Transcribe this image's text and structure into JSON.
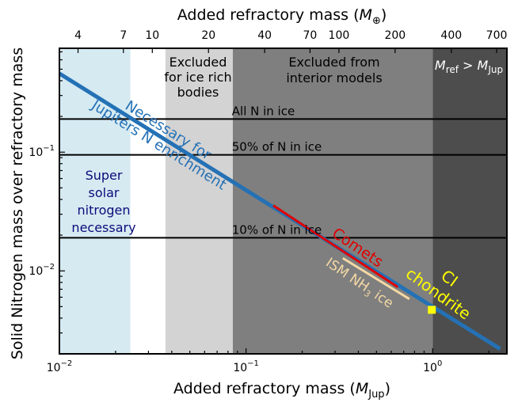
{
  "chart_data": {
    "type": "line",
    "xlabel": "Added refractory mass (M_Jup)",
    "ylabel": "Solid Nitrogen mass over refractory mass",
    "top_xlabel": "Added refractory mass (M_⊕)",
    "xscale": "log",
    "yscale": "log",
    "xlim": [
      0.01,
      2.5
    ],
    "ylim": [
      0.002,
      0.75
    ],
    "x_ticks": [
      {
        "value": 0.01,
        "base": "10",
        "exp": "−2"
      },
      {
        "value": 0.1,
        "base": "10",
        "exp": "−1"
      },
      {
        "value": 1,
        "base": "10",
        "exp": "0"
      }
    ],
    "y_ticks": [
      {
        "value": 0.01,
        "base": "10",
        "exp": "−2"
      },
      {
        "value": 0.1,
        "base": "10",
        "exp": "−1"
      }
    ],
    "top_ticks": [
      {
        "value": 4,
        "label": "4"
      },
      {
        "value": 7,
        "label": "7"
      },
      {
        "value": 10,
        "label": "10"
      },
      {
        "value": 20,
        "label": "20"
      },
      {
        "value": 40,
        "label": "40"
      },
      {
        "value": 70,
        "label": "70"
      },
      {
        "value": 100,
        "label": "100"
      },
      {
        "value": 200,
        "label": "200"
      },
      {
        "value": 400,
        "label": "400"
      },
      {
        "value": 700,
        "label": "700"
      }
    ],
    "earth_masses_per_jupiter": 317.8,
    "regions": [
      {
        "label_lines": [
          "Super",
          "solar",
          "nitrogen",
          "necessary"
        ],
        "x_from": 0.01,
        "x_to": 0.024,
        "color": "#d6eaf2",
        "text_color": "#0b0b7a"
      },
      {
        "label_lines": [
          "Excluded",
          "for ice rich",
          "bodies"
        ],
        "x_from": 0.037,
        "x_to": 0.085,
        "color": "#d3d3d3",
        "text_color": "#000000"
      },
      {
        "label_lines": [
          "Excluded from",
          "interior models"
        ],
        "x_from": 0.085,
        "x_to": 1.0,
        "color": "#7f7f7f",
        "text_color": "#000000"
      },
      {
        "label": "M_ref > M_Jup",
        "x_from": 1.0,
        "x_to": 2.5,
        "color": "#4d4d4d",
        "text_color": "#ffffff"
      }
    ],
    "hlines": [
      {
        "label": "All N in ice",
        "y": 0.19
      },
      {
        "label": "50% of N in ice",
        "y": 0.095
      },
      {
        "label": "10% of N in ice",
        "y": 0.019
      }
    ],
    "series": [
      {
        "name": "Necessary for Jupiters N enrichment",
        "label_lines": [
          "Necessary for",
          "Jupiters N enrichment"
        ],
        "color": "#2471b5",
        "x": [
          0.01,
          2.3
        ],
        "y": [
          0.46,
          0.0022
        ]
      },
      {
        "name": "Comets",
        "label": "Comets",
        "color": "#e00000",
        "x": [
          0.14,
          0.65
        ],
        "y": [
          0.0355,
          0.0073
        ]
      },
      {
        "name": "ISM NH3 ice",
        "label_main": "ISM NH",
        "label_sub": "3",
        "label_tail": " ice",
        "color": "#f4d8a4",
        "x": [
          0.33,
          0.75
        ],
        "y": [
          0.0128,
          0.0058
        ]
      }
    ],
    "points": [
      {
        "name": "CI chondrite",
        "label_lines": [
          "CI",
          "chondrite"
        ],
        "x": 0.99,
        "y": 0.0047,
        "color": "#ffff00"
      }
    ]
  }
}
